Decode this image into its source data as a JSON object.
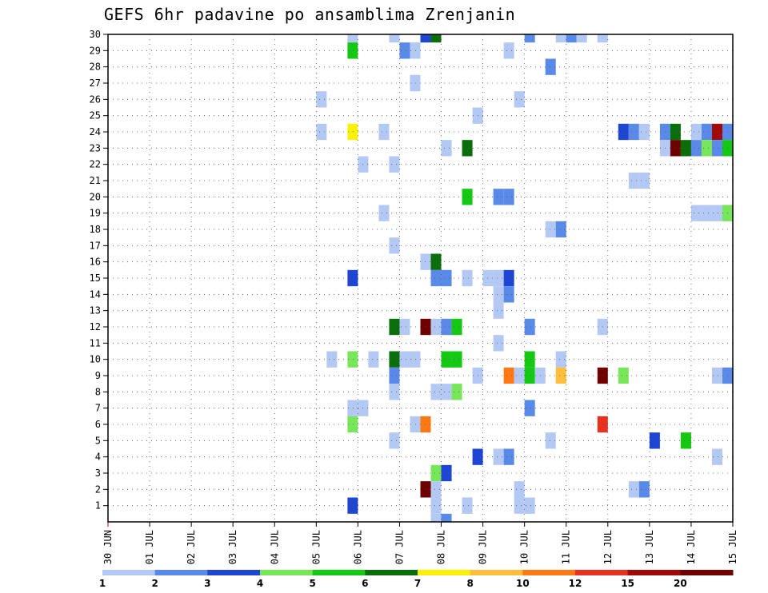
{
  "chart_data": {
    "type": "heatmap",
    "title": "GEFS 6hr padavine po ansamblima Zrenjanin",
    "xlabel": "",
    "ylabel": "",
    "x_ticks": [
      "30 JUN",
      "01 JUL",
      "02 JUL",
      "03 JUL",
      "04 JUL",
      "05 JUL",
      "06 JUL",
      "07 JUL",
      "08 JUL",
      "09 JUL",
      "10 JUL",
      "11 JUL",
      "12 JUL",
      "13 JUL",
      "14 JUL",
      "15 JUL"
    ],
    "x_range_days": [
      0,
      15
    ],
    "y_ticks": [
      1,
      2,
      3,
      4,
      5,
      6,
      7,
      8,
      9,
      10,
      11,
      12,
      13,
      14,
      15,
      16,
      17,
      18,
      19,
      20,
      21,
      22,
      23,
      24,
      25,
      26,
      27,
      28,
      29,
      30
    ],
    "y_range": [
      0,
      30
    ],
    "grid": true,
    "levels": [
      1,
      2,
      3,
      4,
      5,
      6,
      7,
      8,
      10,
      12,
      15,
      20
    ],
    "level_labels": [
      "1",
      "2",
      "3",
      "4",
      "5",
      "6",
      "7",
      "8",
      "10",
      "12",
      "15",
      "20"
    ],
    "colors": [
      "#b4c8f4",
      "#5a8ae8",
      "#1e46d2",
      "#78e65a",
      "#14c814",
      "#0a6e0a",
      "#faf00a",
      "#ffbe3c",
      "#ff7814",
      "#e6321e",
      "#a00a0a",
      "#6e0000"
    ],
    "cell_days": 0.25,
    "cells": [
      {
        "m": 30,
        "t": 5.75,
        "c": 0
      },
      {
        "m": 30,
        "t": 6.75,
        "c": 0
      },
      {
        "m": 30,
        "t": 7.5,
        "c": 2
      },
      {
        "m": 30,
        "t": 7.75,
        "c": 5
      },
      {
        "m": 30,
        "t": 10.0,
        "c": 1
      },
      {
        "m": 30,
        "t": 10.75,
        "c": 0
      },
      {
        "m": 30,
        "t": 11.0,
        "c": 1
      },
      {
        "m": 30,
        "t": 11.25,
        "c": 0
      },
      {
        "m": 30,
        "t": 11.75,
        "c": 0
      },
      {
        "m": 29,
        "t": 5.75,
        "c": 4
      },
      {
        "m": 29,
        "t": 7.0,
        "c": 1
      },
      {
        "m": 29,
        "t": 7.25,
        "c": 0
      },
      {
        "m": 29,
        "t": 9.5,
        "c": 0
      },
      {
        "m": 28,
        "t": 10.5,
        "c": 1
      },
      {
        "m": 27,
        "t": 7.25,
        "c": 0
      },
      {
        "m": 26,
        "t": 5.0,
        "c": 0
      },
      {
        "m": 26,
        "t": 9.75,
        "c": 0
      },
      {
        "m": 25,
        "t": 8.75,
        "c": 0
      },
      {
        "m": 24,
        "t": 5.0,
        "c": 0
      },
      {
        "m": 24,
        "t": 5.75,
        "c": 6
      },
      {
        "m": 24,
        "t": 6.5,
        "c": 0
      },
      {
        "m": 24,
        "t": 12.25,
        "c": 2
      },
      {
        "m": 24,
        "t": 12.5,
        "c": 1
      },
      {
        "m": 24,
        "t": 12.75,
        "c": 0
      },
      {
        "m": 24,
        "t": 13.25,
        "c": 1
      },
      {
        "m": 24,
        "t": 13.5,
        "c": 5
      },
      {
        "m": 24,
        "t": 14.0,
        "c": 0
      },
      {
        "m": 24,
        "t": 14.25,
        "c": 1
      },
      {
        "m": 24,
        "t": 14.5,
        "c": 10
      },
      {
        "m": 24,
        "t": 14.75,
        "c": 1
      },
      {
        "m": 23,
        "t": 8.0,
        "c": 0
      },
      {
        "m": 23,
        "t": 8.5,
        "c": 5
      },
      {
        "m": 23,
        "t": 13.25,
        "c": 0
      },
      {
        "m": 23,
        "t": 13.5,
        "c": 11
      },
      {
        "m": 23,
        "t": 13.75,
        "c": 5
      },
      {
        "m": 23,
        "t": 14.0,
        "c": 1
      },
      {
        "m": 23,
        "t": 14.25,
        "c": 3
      },
      {
        "m": 23,
        "t": 14.5,
        "c": 1
      },
      {
        "m": 23,
        "t": 14.75,
        "c": 4
      },
      {
        "m": 22,
        "t": 6.0,
        "c": 0
      },
      {
        "m": 22,
        "t": 6.75,
        "c": 0
      },
      {
        "m": 21,
        "t": 12.5,
        "c": 0
      },
      {
        "m": 21,
        "t": 12.75,
        "c": 0
      },
      {
        "m": 20,
        "t": 8.5,
        "c": 4
      },
      {
        "m": 20,
        "t": 9.25,
        "c": 1
      },
      {
        "m": 20,
        "t": 9.5,
        "c": 1
      },
      {
        "m": 19,
        "t": 6.5,
        "c": 0
      },
      {
        "m": 19,
        "t": 14.0,
        "c": 0
      },
      {
        "m": 19,
        "t": 14.25,
        "c": 0
      },
      {
        "m": 19,
        "t": 14.5,
        "c": 0
      },
      {
        "m": 19,
        "t": 14.75,
        "c": 3
      },
      {
        "m": 18,
        "t": 10.5,
        "c": 0
      },
      {
        "m": 18,
        "t": 10.75,
        "c": 1
      },
      {
        "m": 17,
        "t": 6.75,
        "c": 0
      },
      {
        "m": 16,
        "t": 7.5,
        "c": 0
      },
      {
        "m": 16,
        "t": 7.75,
        "c": 5
      },
      {
        "m": 15,
        "t": 5.75,
        "c": 2
      },
      {
        "m": 15,
        "t": 7.75,
        "c": 1
      },
      {
        "m": 15,
        "t": 8.0,
        "c": 1
      },
      {
        "m": 15,
        "t": 8.5,
        "c": 0
      },
      {
        "m": 15,
        "t": 9.0,
        "c": 0
      },
      {
        "m": 15,
        "t": 9.25,
        "c": 0
      },
      {
        "m": 15,
        "t": 9.5,
        "c": 2
      },
      {
        "m": 14,
        "t": 9.25,
        "c": 0
      },
      {
        "m": 14,
        "t": 9.5,
        "c": 1
      },
      {
        "m": 13,
        "t": 9.25,
        "c": 0
      },
      {
        "m": 12,
        "t": 6.75,
        "c": 5
      },
      {
        "m": 12,
        "t": 7.0,
        "c": 0
      },
      {
        "m": 12,
        "t": 7.5,
        "c": 11
      },
      {
        "m": 12,
        "t": 7.75,
        "c": 0
      },
      {
        "m": 12,
        "t": 8.0,
        "c": 1
      },
      {
        "m": 12,
        "t": 8.25,
        "c": 4
      },
      {
        "m": 12,
        "t": 10.0,
        "c": 1
      },
      {
        "m": 12,
        "t": 11.75,
        "c": 0
      },
      {
        "m": 11,
        "t": 9.25,
        "c": 0
      },
      {
        "m": 10,
        "t": 5.25,
        "c": 0
      },
      {
        "m": 10,
        "t": 5.75,
        "c": 3
      },
      {
        "m": 10,
        "t": 6.25,
        "c": 0
      },
      {
        "m": 10,
        "t": 6.75,
        "c": 5
      },
      {
        "m": 10,
        "t": 7.0,
        "c": 0
      },
      {
        "m": 10,
        "t": 7.25,
        "c": 0
      },
      {
        "m": 10,
        "t": 8.0,
        "c": 4
      },
      {
        "m": 10,
        "t": 8.25,
        "c": 4
      },
      {
        "m": 10,
        "t": 10.0,
        "c": 4
      },
      {
        "m": 10,
        "t": 10.75,
        "c": 0
      },
      {
        "m": 9,
        "t": 6.75,
        "c": 1
      },
      {
        "m": 9,
        "t": 8.75,
        "c": 0
      },
      {
        "m": 9,
        "t": 9.5,
        "c": 8
      },
      {
        "m": 9,
        "t": 9.75,
        "c": 0
      },
      {
        "m": 9,
        "t": 10.0,
        "c": 4
      },
      {
        "m": 9,
        "t": 10.25,
        "c": 0
      },
      {
        "m": 9,
        "t": 10.75,
        "c": 7
      },
      {
        "m": 9,
        "t": 11.75,
        "c": 11
      },
      {
        "m": 9,
        "t": 12.25,
        "c": 3
      },
      {
        "m": 9,
        "t": 14.5,
        "c": 0
      },
      {
        "m": 9,
        "t": 14.75,
        "c": 1
      },
      {
        "m": 8,
        "t": 6.75,
        "c": 0
      },
      {
        "m": 8,
        "t": 7.75,
        "c": 0
      },
      {
        "m": 8,
        "t": 8.0,
        "c": 0
      },
      {
        "m": 8,
        "t": 8.25,
        "c": 3
      },
      {
        "m": 7,
        "t": 5.75,
        "c": 0
      },
      {
        "m": 7,
        "t": 6.0,
        "c": 0
      },
      {
        "m": 7,
        "t": 10.0,
        "c": 1
      },
      {
        "m": 6,
        "t": 5.75,
        "c": 3
      },
      {
        "m": 6,
        "t": 7.25,
        "c": 0
      },
      {
        "m": 6,
        "t": 7.5,
        "c": 8
      },
      {
        "m": 6,
        "t": 11.75,
        "c": 9
      },
      {
        "m": 5,
        "t": 6.75,
        "c": 0
      },
      {
        "m": 5,
        "t": 10.5,
        "c": 0
      },
      {
        "m": 5,
        "t": 13.0,
        "c": 2
      },
      {
        "m": 5,
        "t": 13.75,
        "c": 4
      },
      {
        "m": 4,
        "t": 8.75,
        "c": 2
      },
      {
        "m": 4,
        "t": 9.25,
        "c": 0
      },
      {
        "m": 4,
        "t": 9.5,
        "c": 1
      },
      {
        "m": 4,
        "t": 14.5,
        "c": 0
      },
      {
        "m": 3,
        "t": 7.75,
        "c": 3
      },
      {
        "m": 3,
        "t": 8.0,
        "c": 2
      },
      {
        "m": 2,
        "t": 7.5,
        "c": 11
      },
      {
        "m": 2,
        "t": 7.75,
        "c": 0
      },
      {
        "m": 2,
        "t": 9.75,
        "c": 0
      },
      {
        "m": 2,
        "t": 12.5,
        "c": 0
      },
      {
        "m": 2,
        "t": 12.75,
        "c": 1
      },
      {
        "m": 1,
        "t": 5.75,
        "c": 2
      },
      {
        "m": 1,
        "t": 7.75,
        "c": 0
      },
      {
        "m": 1,
        "t": 8.5,
        "c": 0
      },
      {
        "m": 1,
        "t": 9.75,
        "c": 0
      },
      {
        "m": 1,
        "t": 10.0,
        "c": 0
      },
      {
        "m": 0,
        "t": 7.75,
        "c": 0
      },
      {
        "m": 0,
        "t": 8.0,
        "c": 1
      }
    ]
  }
}
